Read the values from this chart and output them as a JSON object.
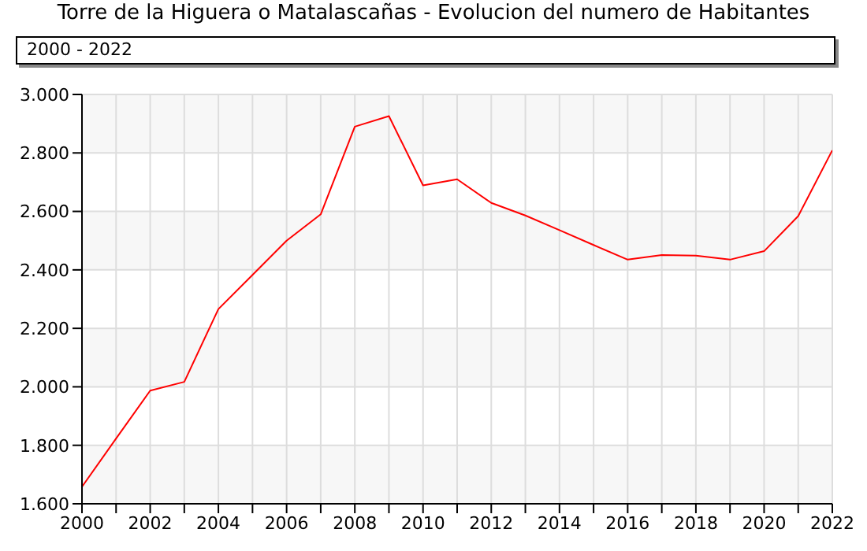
{
  "chart_data": {
    "type": "line",
    "title": "Torre de la Higuera o Matalascañas - Evolucion del numero de Habitantes",
    "subtitle": "2000 - 2022",
    "x": [
      2000,
      2001,
      2002,
      2003,
      2004,
      2005,
      2006,
      2007,
      2008,
      2009,
      2010,
      2011,
      2012,
      2013,
      2014,
      2015,
      2016,
      2017,
      2018,
      2019,
      2020,
      2021,
      2022
    ],
    "series": [
      {
        "color": "#ff0000",
        "values": [
          1658,
          1823,
          1987,
          2017,
          2266,
          2383,
          2500,
          2590,
          2890,
          2926,
          2689,
          2710,
          2629,
          2586,
          2536,
          2485,
          2435,
          2451,
          2449,
          2435,
          2464,
          2584,
          2809
        ]
      }
    ],
    "xlim": [
      2000,
      2022
    ],
    "xticks": [
      2000,
      {
        "value": 2001,
        "label": null
      },
      2002,
      {
        "value": 2003,
        "label": null
      },
      2004,
      {
        "value": 2005,
        "label": null
      },
      2006,
      {
        "value": 2007,
        "label": null
      },
      2008,
      {
        "value": 2009,
        "label": null
      },
      2010,
      {
        "value": 2011,
        "label": null
      },
      2012,
      {
        "value": 2013,
        "label": null
      },
      2014,
      {
        "value": 2015,
        "label": null
      },
      2016,
      {
        "value": 2017,
        "label": null
      },
      2018,
      {
        "value": 2019,
        "label": null
      },
      2020,
      {
        "value": 2021,
        "label": null
      },
      2022
    ],
    "ylim": [
      1600,
      3000
    ],
    "yticks": [
      {
        "value": 1600,
        "label": "1.600"
      },
      {
        "value": 1800,
        "label": "1.800"
      },
      {
        "value": 2000,
        "label": "2.000"
      },
      {
        "value": 2200,
        "label": "2.200"
      },
      {
        "value": 2400,
        "label": "2.400"
      },
      {
        "value": 2600,
        "label": "2.600"
      },
      {
        "value": 2800,
        "label": "2.800"
      },
      {
        "value": 3000,
        "label": "3.000"
      }
    ],
    "grid": true,
    "marker": "none",
    "line_style": "solid"
  }
}
